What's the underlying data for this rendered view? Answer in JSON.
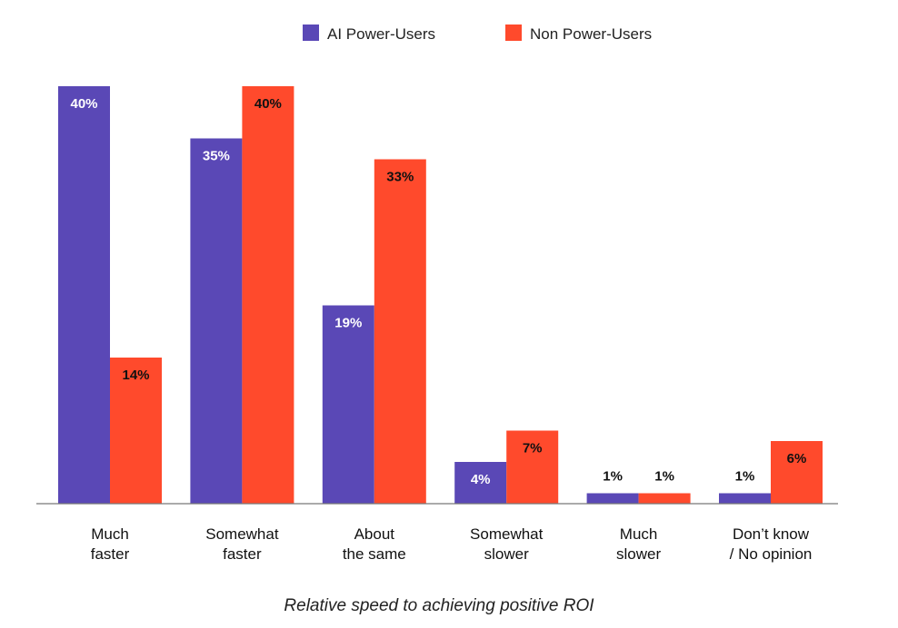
{
  "chart_data": {
    "type": "bar",
    "title": "",
    "xlabel": "Relative speed to achieving positive ROI",
    "ylabel": "",
    "ylim": [
      0,
      40
    ],
    "grid": false,
    "legend_position": "top-center",
    "categories": [
      [
        "Much",
        "faster"
      ],
      [
        "Somewhat",
        "faster"
      ],
      [
        "About",
        "the same"
      ],
      [
        "Somewhat",
        "slower"
      ],
      [
        "Much",
        "slower"
      ],
      [
        "Don’t know",
        "/ No opinion"
      ]
    ],
    "series": [
      {
        "name": "AI Power-Users",
        "color": "#5a48b6",
        "values": [
          40,
          35,
          19,
          4,
          1,
          1
        ],
        "labels": [
          "40%",
          "35%",
          "19%",
          "4%",
          "1%",
          "1%"
        ],
        "label_color": "#ffffff"
      },
      {
        "name": "Non Power-Users",
        "color": "#ff4a2c",
        "values": [
          14,
          40,
          33,
          7,
          1,
          6
        ],
        "labels": [
          "14%",
          "40%",
          "33%",
          "7%",
          "1%",
          "6%"
        ],
        "label_color": "#111111"
      }
    ]
  }
}
